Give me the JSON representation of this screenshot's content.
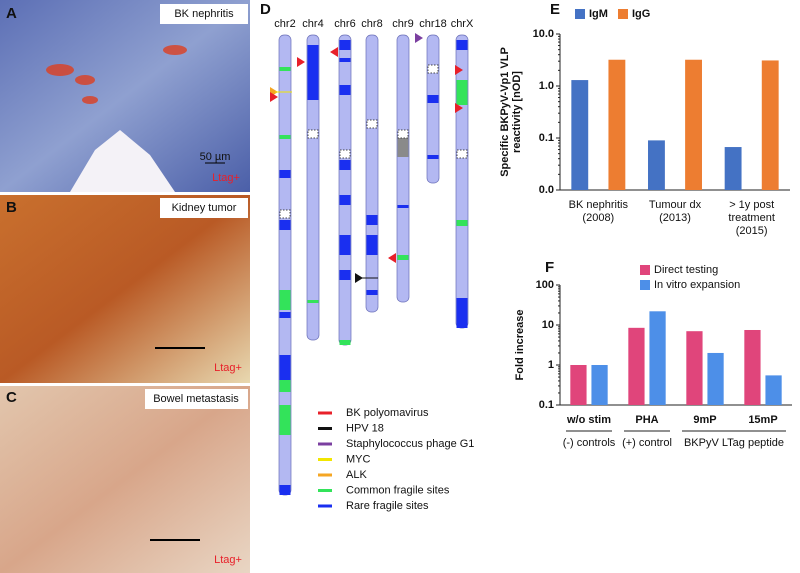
{
  "panels": {
    "A": {
      "letter": "A",
      "title": "BK nephritis",
      "stain": "Ltag+",
      "scale": "50 µm"
    },
    "B": {
      "letter": "B",
      "title": "Kidney tumor",
      "stain": "Ltag+"
    },
    "C": {
      "letter": "C",
      "title": "Bowel metastasis",
      "stain": "Ltag+"
    },
    "D": {
      "letter": "D",
      "chromosomes": [
        "chr2",
        "chr4",
        "chr6",
        "chr8",
        "chr9",
        "chr18",
        "chrX"
      ],
      "legend": [
        {
          "label": "BK polyomavirus",
          "color": "#e8202a"
        },
        {
          "label": "HPV 18",
          "color": "#111111"
        },
        {
          "label": "Staphylococcus phage G1",
          "color": "#7b3fa0"
        },
        {
          "label": "MYC",
          "color": "#f2e600"
        },
        {
          "label": "ALK",
          "color": "#f5a623"
        },
        {
          "label": "Common fragile sites",
          "color": "#33e35a"
        },
        {
          "label": "Rare fragile sites",
          "color": "#1a2ff0"
        }
      ]
    }
  },
  "chart_data": [
    {
      "type": "bar",
      "letter": "E",
      "log_scale": true,
      "y_label": [
        "Specific BKPyV-Vp1 VLP",
        "reactivity [nOD]"
      ],
      "categories": [
        [
          "BK nephritis",
          "(2008)"
        ],
        [
          "Tumour dx",
          "(2013)"
        ],
        [
          "> 1y post",
          "treatment",
          "(2015)"
        ]
      ],
      "series": [
        {
          "name": "IgM",
          "color": "#4472c4",
          "values": [
            1.3,
            0.09,
            0.067
          ]
        },
        {
          "name": "IgG",
          "color": "#ed7d31",
          "values": [
            3.2,
            3.2,
            3.1
          ]
        }
      ],
      "ylim": [
        0.01,
        10
      ],
      "yticks": [
        {
          "value": 0.01,
          "label": "0.0"
        },
        {
          "value": 0.1,
          "label": "0.1"
        },
        {
          "value": 1,
          "label": "1.0"
        },
        {
          "value": 10,
          "label": "10.0"
        }
      ]
    },
    {
      "type": "bar",
      "letter": "F",
      "log_scale": true,
      "y_label": [
        "Fold increase"
      ],
      "categories": [
        [
          "w/o stim"
        ],
        [
          "PHA"
        ],
        [
          "9mP"
        ],
        [
          "15mP"
        ]
      ],
      "category_groups": [
        "(-) controls",
        "(+) control",
        "BKPyV LTag peptide"
      ],
      "series": [
        {
          "name": "Direct testing",
          "color": "#e0457b",
          "values": [
            1,
            8.5,
            7,
            7.5
          ]
        },
        {
          "name": "In vitro expansion",
          "color": "#4d8fe8",
          "values": [
            1,
            22,
            2,
            0.55
          ]
        }
      ],
      "ylim": [
        0.1,
        100
      ],
      "yticks": [
        0.1,
        1,
        10,
        100
      ]
    }
  ]
}
